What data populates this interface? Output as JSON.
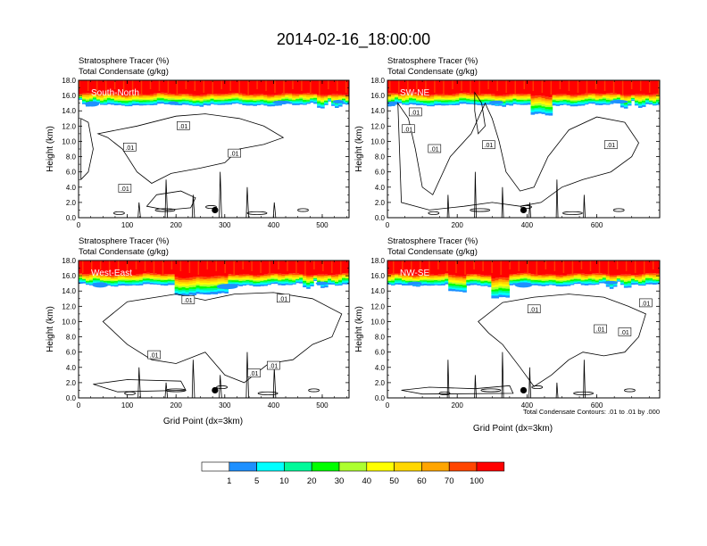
{
  "title": "2014-02-16_18:00:00",
  "var_label_1": "Stratosphere Tracer   (%)",
  "var_label_2": "Total Condensate   (g/kg)",
  "y_axis_label": "Height (km)",
  "x_axis_label": "Grid Point (dx=3km)",
  "contour_note": "Total Condensate Contours: .01 to .01 by .000",
  "contour_label": ".01",
  "colors": {
    "bins": [
      "#ffffff",
      "#1e90ff",
      "#00ffff",
      "#00fa9a",
      "#00ff00",
      "#adff2f",
      "#ffff00",
      "#ffd700",
      "#ffa500",
      "#ff4500",
      "#ff0000"
    ],
    "frame": "#000000",
    "contour": "#000000"
  },
  "chart_data": [
    {
      "type": "heatmap",
      "panel": "South-North",
      "direction_label": "South-North",
      "title_lines": [
        "Stratosphere Tracer   (%)",
        "Total Condensate   (g/kg)"
      ],
      "xlim": [
        0,
        555
      ],
      "ylim": [
        0,
        18
      ],
      "xticks": [
        0,
        100,
        200,
        300,
        400,
        500
      ],
      "yticks": [
        0.0,
        2.0,
        4.0,
        6.0,
        8.0,
        10.0,
        12.0,
        14.0,
        16.0,
        18.0
      ],
      "xlabel": "",
      "ylabel": "Height (km)",
      "tracer_base_km": 15.6,
      "marker": {
        "x": 280,
        "y": 1.0
      },
      "contour_labels": [
        {
          "x": 215,
          "y": 12.0,
          "text": ".01"
        },
        {
          "x": 105,
          "y": 9.2,
          "text": ".01"
        },
        {
          "x": 320,
          "y": 8.4,
          "text": ".01"
        },
        {
          "x": 95,
          "y": 3.8,
          "text": ".01"
        }
      ]
    },
    {
      "type": "heatmap",
      "panel": "SW-NE",
      "direction_label": "SW-NE",
      "title_lines": [
        "Stratosphere Tracer   (%)",
        "Total Condensate   (g/kg)"
      ],
      "xlim": [
        0,
        780
      ],
      "ylim": [
        0,
        18
      ],
      "xticks": [
        0,
        200,
        400,
        600
      ],
      "yticks": [
        0.0,
        2.0,
        4.0,
        6.0,
        8.0,
        10.0,
        12.0,
        14.0,
        16.0,
        18.0
      ],
      "xlabel": "",
      "ylabel": "Height (km)",
      "tracer_base_km": 15.6,
      "marker": {
        "x": 390,
        "y": 1.0
      },
      "contour_labels": [
        {
          "x": 80,
          "y": 13.8,
          "text": ".01"
        },
        {
          "x": 60,
          "y": 11.6,
          "text": ".01"
        },
        {
          "x": 135,
          "y": 9.0,
          "text": ".01"
        },
        {
          "x": 290,
          "y": 9.5,
          "text": ".01"
        },
        {
          "x": 640,
          "y": 9.5,
          "text": ".01"
        }
      ]
    },
    {
      "type": "heatmap",
      "panel": "West-East",
      "direction_label": "West-East",
      "title_lines": [
        "Stratosphere Tracer   (%)",
        "Total Condensate   (g/kg)"
      ],
      "xlim": [
        0,
        555
      ],
      "ylim": [
        0,
        18
      ],
      "xticks": [
        0,
        100,
        200,
        300,
        400,
        500
      ],
      "yticks": [
        0.0,
        2.0,
        4.0,
        6.0,
        8.0,
        10.0,
        12.0,
        14.0,
        16.0,
        18.0
      ],
      "xlabel": "Grid Point (dx=3km)",
      "ylabel": "Height (km)",
      "tracer_base_km": 15.6,
      "marker": {
        "x": 280,
        "y": 1.0
      },
      "contour_labels": [
        {
          "x": 225,
          "y": 12.8,
          "text": ".01"
        },
        {
          "x": 420,
          "y": 13.0,
          "text": ".01"
        },
        {
          "x": 155,
          "y": 5.6,
          "text": ".01"
        },
        {
          "x": 400,
          "y": 4.2,
          "text": ".01"
        },
        {
          "x": 360,
          "y": 3.2,
          "text": ".01"
        }
      ]
    },
    {
      "type": "heatmap",
      "panel": "NW-SE",
      "direction_label": "NW-SE",
      "title_lines": [
        "Stratosphere Tracer   (%)",
        "Total Condensate   (g/kg)"
      ],
      "xlim": [
        0,
        780
      ],
      "ylim": [
        0,
        18
      ],
      "xticks": [
        0,
        200,
        400,
        600
      ],
      "yticks": [
        0.0,
        2.0,
        4.0,
        6.0,
        8.0,
        10.0,
        12.0,
        14.0,
        16.0,
        18.0
      ],
      "xlabel": "Grid Point (dx=3km)",
      "ylabel": "Height (km)",
      "tracer_base_km": 15.6,
      "marker": {
        "x": 390,
        "y": 1.0
      },
      "contour_labels": [
        {
          "x": 420,
          "y": 11.6,
          "text": ".01"
        },
        {
          "x": 610,
          "y": 9.0,
          "text": ".01"
        },
        {
          "x": 680,
          "y": 8.6,
          "text": ".01"
        },
        {
          "x": 740,
          "y": 12.4,
          "text": ".01"
        }
      ]
    }
  ],
  "colorbar": {
    "labels": [
      "1",
      "5",
      "10",
      "20",
      "30",
      "40",
      "50",
      "60",
      "70",
      "100"
    ],
    "colors": [
      "#ffffff",
      "#1e90ff",
      "#00ffff",
      "#00fa9a",
      "#00ff00",
      "#adff2f",
      "#ffff00",
      "#ffd700",
      "#ffa500",
      "#ff4500",
      "#ff0000"
    ]
  }
}
